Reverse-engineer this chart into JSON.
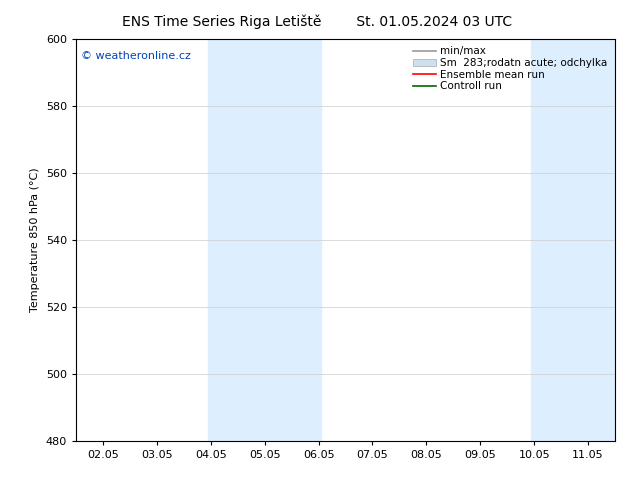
{
  "title_left": "ENS Time Series Riga Letiště",
  "title_right": "St. 01.05.2024 03 UTC",
  "ylabel": "Temperature 850 hPa (°C)",
  "ylim": [
    480,
    600
  ],
  "yticks": [
    480,
    500,
    520,
    540,
    560,
    580,
    600
  ],
  "xtick_labels": [
    "02.05",
    "03.05",
    "04.05",
    "05.05",
    "06.05",
    "07.05",
    "08.05",
    "09.05",
    "10.05",
    "11.05"
  ],
  "xtick_positions": [
    0,
    1,
    2,
    3,
    4,
    5,
    6,
    7,
    8,
    9
  ],
  "xlim": [
    -0.5,
    9.5
  ],
  "shaded_regions": [
    {
      "x_start": 1.95,
      "x_end": 4.05,
      "color": "#ddeeff"
    },
    {
      "x_start": 7.95,
      "x_end": 9.5,
      "color": "#ddeeff"
    }
  ],
  "legend_entries": [
    {
      "label": "min/max",
      "color": "#999999",
      "type": "line"
    },
    {
      "label": "Sm  283;rodatn acute; odchylka",
      "color": "#cce0f0",
      "type": "bar"
    },
    {
      "label": "Ensemble mean run",
      "color": "#ff0000",
      "type": "line"
    },
    {
      "label": "Controll run",
      "color": "#006600",
      "type": "line"
    }
  ],
  "watermark_text": "© weatheronline.cz",
  "watermark_color": "#0044bb",
  "background_color": "#ffffff",
  "plot_bg_color": "#ffffff",
  "grid_color": "#cccccc",
  "border_color": "#000000",
  "title_fontsize": 10,
  "axis_fontsize": 8,
  "tick_fontsize": 8,
  "legend_fontsize": 7.5,
  "watermark_fontsize": 8
}
